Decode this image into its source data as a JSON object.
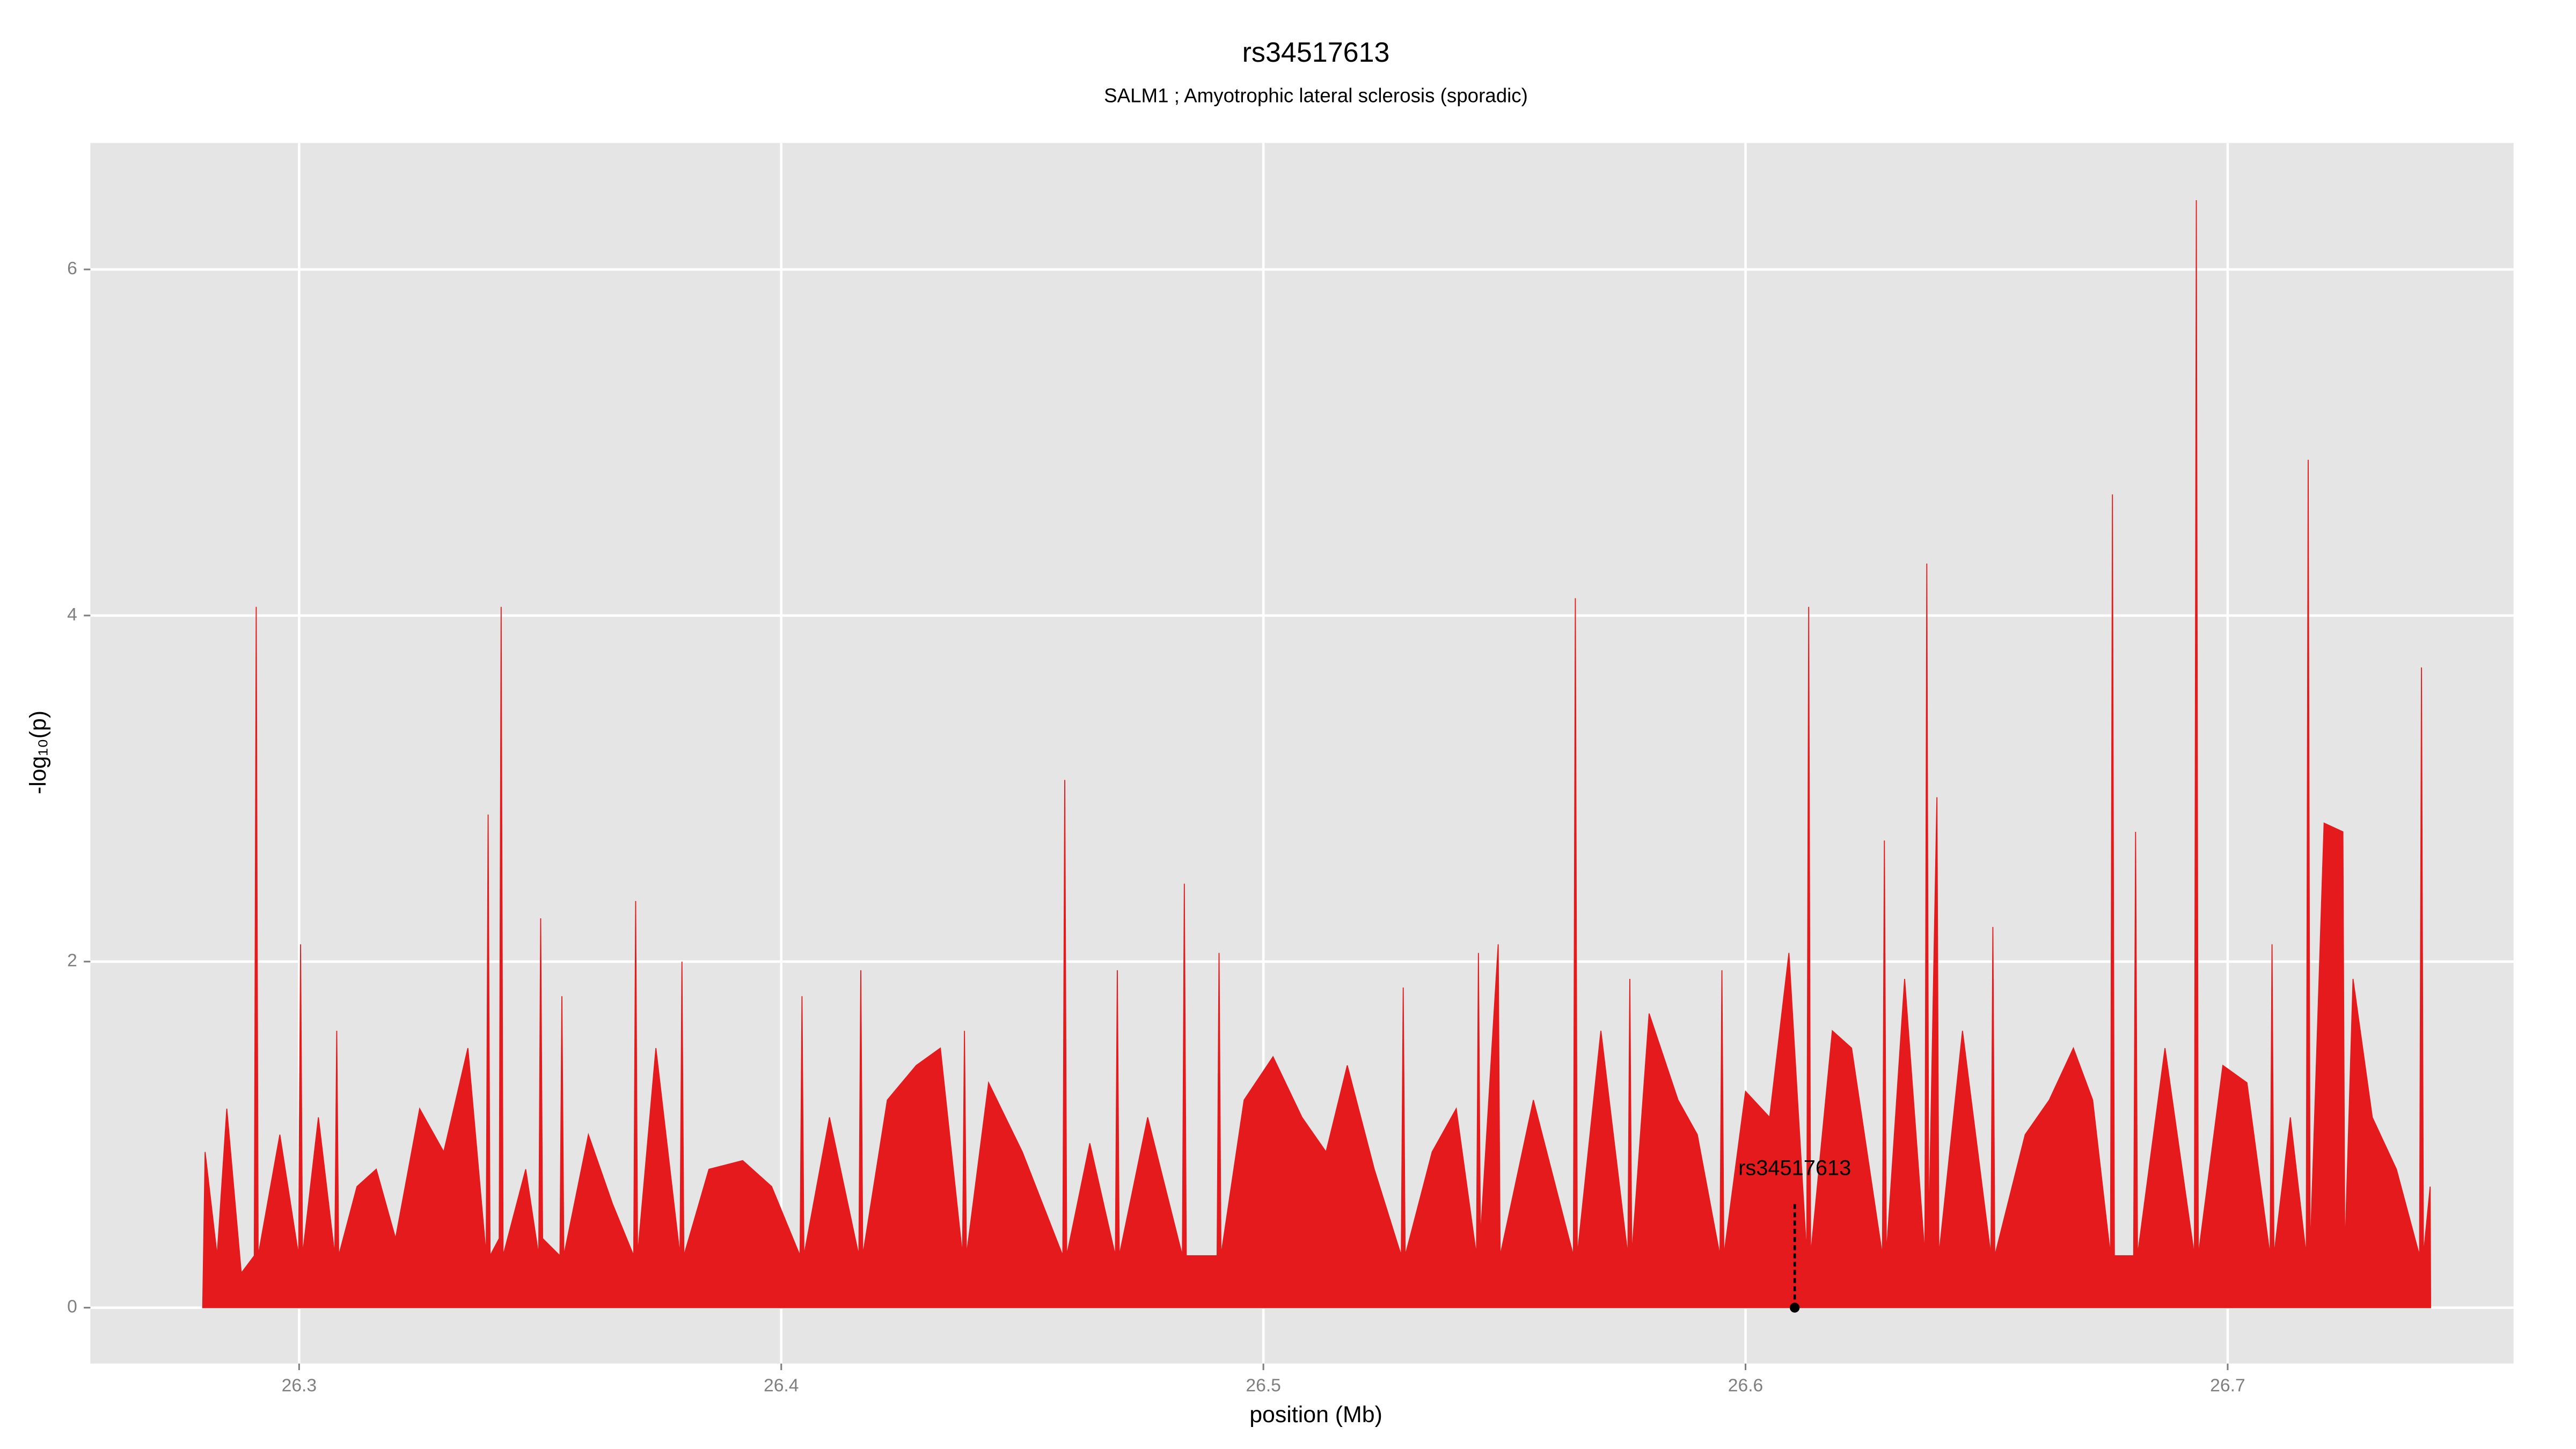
{
  "chart_data": {
    "type": "area",
    "title": "rs34517613",
    "subtitle": "SALM1 ; Amyotrophic lateral sclerosis (sporadic)",
    "x_label": "position (Mb)",
    "y_label": "-log₁₀(p)",
    "color": "#e41a1c",
    "background": "#e5e5e5",
    "grid": true,
    "xlim": [
      26.2567,
      26.7593
    ],
    "ylim": [
      -0.323,
      6.731
    ],
    "xticks": [
      26.3,
      26.4,
      26.5,
      26.6,
      26.7
    ],
    "yticks": [
      0,
      2,
      4,
      6
    ],
    "x": [
      26.28,
      26.2805,
      26.283,
      26.285,
      26.288,
      26.2907,
      26.2911,
      26.2915,
      26.296,
      26.2999,
      26.3003,
      26.3007,
      26.304,
      26.3074,
      26.3078,
      26.3082,
      26.312,
      26.316,
      26.32,
      26.325,
      26.33,
      26.335,
      26.3388,
      26.3392,
      26.3396,
      26.3415,
      26.3419,
      26.3423,
      26.347,
      26.3497,
      26.3501,
      26.3505,
      26.3541,
      26.3545,
      26.3549,
      26.36,
      26.365,
      26.3694,
      26.3698,
      26.3702,
      26.374,
      26.379,
      26.3794,
      26.3798,
      26.385,
      26.392,
      26.398,
      26.4039,
      26.4043,
      26.4047,
      26.41,
      26.4161,
      26.4165,
      26.4169,
      26.422,
      26.428,
      26.433,
      26.4376,
      26.438,
      26.4384,
      26.443,
      26.45,
      26.4584,
      26.4588,
      26.4592,
      26.464,
      26.4693,
      26.4697,
      26.4701,
      26.476,
      26.4832,
      26.4836,
      26.484,
      26.4904,
      26.4908,
      26.4912,
      26.496,
      26.502,
      26.508,
      26.513,
      26.5174,
      26.523,
      26.5286,
      26.529,
      26.5294,
      26.535,
      26.54,
      26.5442,
      26.5446,
      26.545,
      26.5487,
      26.5491,
      26.556,
      26.5643,
      26.5647,
      26.5651,
      26.57,
      26.5756,
      26.576,
      26.5764,
      26.58,
      26.586,
      26.59,
      26.5947,
      26.5951,
      26.5955,
      26.6,
      26.605,
      26.609,
      26.6127,
      26.6131,
      26.6135,
      26.618,
      26.622,
      26.6284,
      26.6288,
      26.6292,
      26.633,
      26.6372,
      26.6376,
      26.638,
      26.6397,
      26.6401,
      26.645,
      26.6509,
      26.6513,
      26.6517,
      26.658,
      26.663,
      26.668,
      26.672,
      26.6757,
      26.6761,
      26.6765,
      26.6805,
      26.6809,
      26.6813,
      26.687,
      26.6931,
      26.6935,
      26.6939,
      26.699,
      26.704,
      26.7088,
      26.7092,
      26.7096,
      26.713,
      26.7163,
      26.7167,
      26.7171,
      26.72,
      26.7239,
      26.7243,
      26.726,
      26.73,
      26.735,
      26.7398,
      26.7402,
      26.7406,
      26.742,
      26.7421
    ],
    "values": [
      0,
      0.9,
      0.3,
      1.15,
      0.2,
      0.3,
      4.05,
      0.3,
      1.0,
      0.3,
      2.1,
      0.3,
      1.1,
      0.3,
      1.6,
      0.3,
      0.7,
      0.8,
      0.4,
      1.15,
      0.9,
      1.5,
      0.3,
      2.85,
      0.3,
      0.4,
      4.05,
      0.3,
      0.8,
      0.3,
      2.25,
      0.4,
      0.3,
      1.8,
      0.3,
      1.0,
      0.6,
      0.3,
      2.35,
      0.3,
      1.5,
      0.3,
      2.0,
      0.3,
      0.8,
      0.85,
      0.7,
      0.3,
      1.8,
      0.3,
      1.1,
      0.3,
      1.95,
      0.3,
      1.2,
      1.4,
      1.5,
      0.3,
      1.6,
      0.3,
      1.3,
      0.9,
      0.3,
      3.05,
      0.3,
      0.95,
      0.3,
      1.95,
      0.3,
      1.1,
      0.3,
      2.45,
      0.3,
      0.3,
      2.05,
      0.3,
      1.2,
      1.45,
      1.1,
      0.9,
      1.4,
      0.8,
      0.3,
      1.85,
      0.3,
      0.9,
      1.15,
      0.3,
      2.05,
      0.4,
      2.1,
      0.3,
      1.2,
      0.3,
      4.1,
      0.3,
      1.6,
      0.3,
      1.9,
      0.3,
      1.7,
      1.2,
      1.0,
      0.3,
      1.95,
      0.3,
      1.25,
      1.1,
      2.05,
      0.3,
      4.05,
      0.3,
      1.6,
      1.5,
      0.3,
      2.7,
      0.3,
      1.9,
      0.3,
      4.3,
      0.4,
      2.95,
      0.3,
      1.6,
      0.3,
      2.2,
      0.3,
      1.0,
      1.2,
      1.5,
      1.2,
      0.3,
      4.7,
      0.3,
      0.3,
      2.75,
      0.3,
      1.5,
      0.3,
      6.4,
      0.3,
      1.4,
      1.3,
      0.3,
      2.1,
      0.3,
      1.1,
      0.3,
      4.9,
      0.3,
      2.8,
      2.75,
      0.3,
      1.9,
      1.1,
      0.8,
      0.3,
      3.7,
      0.3,
      0.7,
      0
    ],
    "annotation": {
      "label": "rs34517613",
      "x": 26.6102,
      "y": 0,
      "line_top": 0.6
    }
  }
}
